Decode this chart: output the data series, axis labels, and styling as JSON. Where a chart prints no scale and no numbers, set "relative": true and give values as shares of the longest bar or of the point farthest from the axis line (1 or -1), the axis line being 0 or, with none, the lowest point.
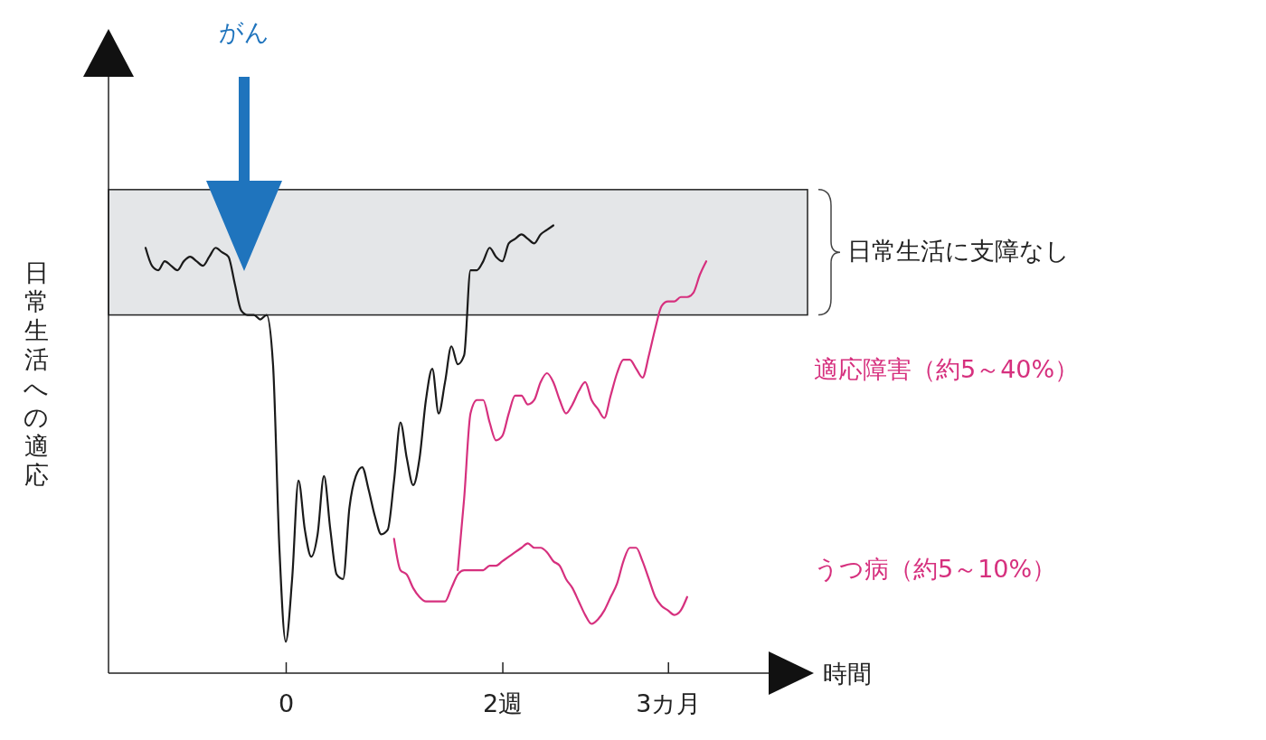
{
  "chart_data": {
    "type": "line",
    "relative": true,
    "xlabel": "時間",
    "ylabel": "日常生活への適応",
    "categories": [
      null,
      null,
      null,
      null,
      null,
      null,
      null,
      null,
      null,
      null,
      null,
      null,
      null,
      null,
      null,
      null,
      null,
      null,
      null,
      null,
      null,
      null,
      "0",
      null,
      null,
      null,
      null,
      null,
      null,
      null,
      null,
      null,
      null,
      null,
      null,
      null,
      null,
      null,
      null,
      null,
      null,
      null,
      null,
      null,
      null,
      null,
      null,
      null,
      null,
      null,
      null,
      null,
      null,
      null,
      null,
      null,
      "2週",
      null,
      null,
      null,
      null,
      null,
      null,
      null,
      null,
      null,
      null,
      null,
      null,
      null,
      null,
      null,
      null,
      null,
      null,
      null,
      null,
      null,
      null,
      null,
      null,
      null,
      "3カ月",
      null,
      null,
      null,
      null,
      null,
      null
    ],
    "grid": false,
    "legend": false,
    "bands": [
      {
        "axis": "y",
        "from": 0.8,
        "to": 1.08,
        "label": "日常生活に支障なし",
        "color": "#e4e6e8"
      }
    ],
    "annotations": [
      "がん"
    ],
    "series": [
      {
        "color": "#1a1a1a",
        "values": [
          0.95,
          0.91,
          0.9,
          0.92,
          0.91,
          0.9,
          0.92,
          0.93,
          0.92,
          0.91,
          0.93,
          0.95,
          0.94,
          0.93,
          0.87,
          0.81,
          0.8,
          0.8,
          0.79,
          0.8,
          0.69,
          0.28,
          0.07,
          0.21,
          0.43,
          0.32,
          0.26,
          0.31,
          0.44,
          0.32,
          0.22,
          0.21,
          0.37,
          0.44,
          0.46,
          0.41,
          0.35,
          0.31,
          0.32,
          0.43,
          0.56,
          0.48,
          0.42,
          0.48,
          0.61,
          0.68,
          0.58,
          0.65,
          0.73,
          0.69,
          0.71,
          0.9,
          0.9,
          0.92,
          0.95,
          0.93,
          0.92,
          0.96,
          0.97,
          0.98,
          0.97,
          0.96,
          0.98,
          0.99,
          1.0,
          null,
          null,
          null,
          null,
          null,
          null,
          null,
          null,
          null,
          null,
          null,
          null,
          null,
          null,
          null,
          null,
          null,
          null,
          null,
          null,
          null,
          null,
          null,
          null
        ]
      },
      {
        "name": "適応障害（約5～40%）",
        "color": "#d6307e",
        "values": [
          null,
          null,
          null,
          null,
          null,
          null,
          null,
          null,
          null,
          null,
          null,
          null,
          null,
          null,
          null,
          null,
          null,
          null,
          null,
          null,
          null,
          null,
          null,
          null,
          null,
          null,
          null,
          null,
          null,
          null,
          null,
          null,
          null,
          null,
          null,
          null,
          null,
          null,
          null,
          null,
          null,
          null,
          null,
          null,
          null,
          null,
          null,
          null,
          null,
          0.23,
          0.39,
          0.58,
          0.61,
          0.61,
          0.56,
          0.52,
          0.53,
          0.58,
          0.62,
          0.62,
          0.6,
          0.61,
          0.65,
          0.67,
          0.65,
          0.61,
          0.58,
          0.6,
          0.63,
          0.65,
          0.61,
          0.59,
          0.57,
          0.62,
          0.67,
          0.7,
          0.7,
          0.68,
          0.66,
          0.71,
          0.77,
          0.82,
          0.83,
          0.83,
          0.84,
          0.84,
          0.85,
          0.89,
          0.92
        ]
      },
      {
        "name": "うつ病（約5～10%）",
        "color": "#d6307e",
        "values": [
          null,
          null,
          null,
          null,
          null,
          null,
          null,
          null,
          null,
          null,
          null,
          null,
          null,
          null,
          null,
          null,
          null,
          null,
          null,
          null,
          null,
          null,
          null,
          null,
          null,
          null,
          null,
          null,
          null,
          null,
          null,
          null,
          null,
          null,
          null,
          null,
          null,
          null,
          null,
          0.3,
          0.23,
          0.22,
          0.19,
          0.17,
          0.16,
          0.16,
          0.16,
          0.16,
          0.19,
          0.22,
          0.23,
          0.23,
          0.23,
          0.23,
          0.24,
          0.24,
          0.25,
          0.26,
          0.27,
          0.28,
          0.29,
          0.28,
          0.28,
          0.27,
          0.25,
          0.24,
          0.21,
          0.19,
          0.16,
          0.13,
          0.11,
          0.12,
          0.14,
          0.17,
          0.2,
          0.25,
          0.28,
          0.28,
          0.25,
          0.21,
          0.17,
          0.15,
          0.14,
          0.13,
          0.14,
          0.17,
          null,
          null,
          null
        ]
      }
    ]
  }
}
